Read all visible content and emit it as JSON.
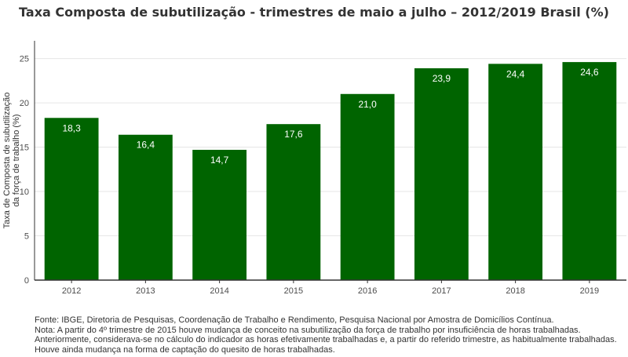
{
  "chart_data": {
    "type": "bar",
    "title": "Taxa Composta de subutilização - trimestres de maio a julho – 2012/2019 Brasil (%)",
    "ylabel_lines": [
      "Taxa de Composta de subutilização",
      "da força de trabalho (%)"
    ],
    "xlabel": "",
    "categories": [
      "2012",
      "2013",
      "2014",
      "2015",
      "2016",
      "2017",
      "2018",
      "2019"
    ],
    "values": [
      18.3,
      16.4,
      14.7,
      17.6,
      21.0,
      23.9,
      24.4,
      24.6
    ],
    "value_labels": [
      "18,3",
      "16,4",
      "14,7",
      "17,6",
      "21,0",
      "23,9",
      "24,4",
      "24,6"
    ],
    "ylim": [
      0,
      27
    ],
    "yticks": [
      0,
      5,
      10,
      15,
      20,
      25
    ],
    "bar_color": "#006400",
    "label_color": "#ffffff",
    "grid": true
  },
  "footnotes": [
    "Fonte: IBGE, Diretoria de Pesquisas, Coordenação de Trabalho e Rendimento, Pesquisa Nacional por Amostra de Domicílios Contínua.",
    "Nota: A partir do 4º trimestre de 2015 houve mudança de conceito na subutilização da força de trabalho por insuficiência de horas trabalhadas.",
    "Anteriormente, considerava-se no cálculo do indicador as horas efetivamente trabalhadas e, a partir do referido trimestre, as habitualmente trabalhadas.",
    "Houve ainda mudança na forma de captação do quesito de horas trabalhadas."
  ]
}
